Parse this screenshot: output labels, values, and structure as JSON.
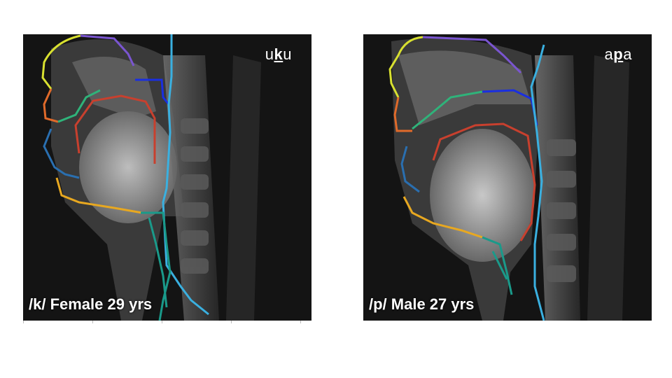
{
  "panels": [
    {
      "caption": "/k/ Female 29 yrs",
      "syllable": {
        "pre": "u",
        "target": "k",
        "post": "u"
      }
    },
    {
      "caption": "/p/ Male 27 yrs",
      "syllable": {
        "pre": "a",
        "target": "p",
        "post": "a"
      }
    }
  ],
  "contour_colors": {
    "upper_lip_nose": "#d8e030",
    "velum_roof": "#7a55d0",
    "lip": "#e06a2a",
    "palate": "#2fb37a",
    "tongue": "#c8402e",
    "pharynx_top": "#1a2fe0",
    "pharynx_wall": "#3ab0e0",
    "lower_lip": "#2a6fb0",
    "jaw": "#e8a820",
    "larynx": "#1a9a8a"
  }
}
